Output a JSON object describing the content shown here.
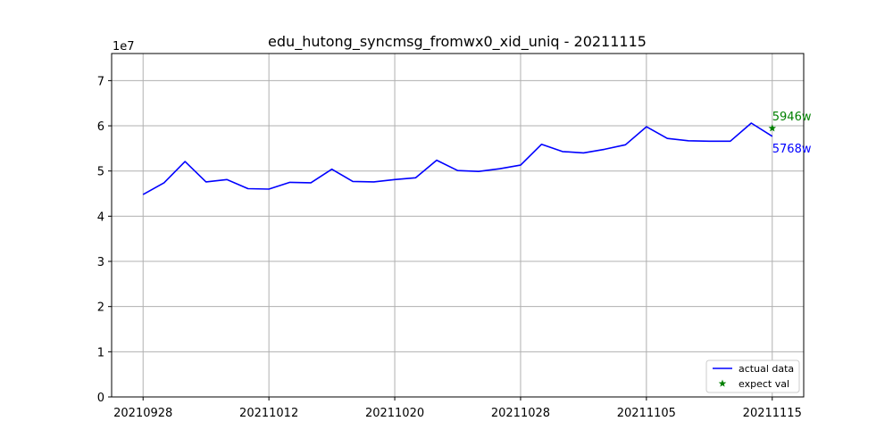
{
  "chart_data": {
    "type": "line",
    "title": "edu_hutong_syncmsg_fromwx0_xid_uniq - 20211115",
    "y_multiplier_label": "1e7",
    "xlabel": "",
    "ylabel": "",
    "ylim": [
      0,
      7.6
    ],
    "y_ticks": [
      0,
      1,
      2,
      3,
      4,
      5,
      6,
      7
    ],
    "y_tick_labels": [
      "0",
      "1",
      "2",
      "3",
      "4",
      "5",
      "6",
      "7"
    ],
    "x_tick_labels": [
      "20210928",
      "20211012",
      "20211020",
      "20211028",
      "20211105",
      "20211115"
    ],
    "x_tick_positions": [
      0,
      6,
      12,
      18,
      24,
      30
    ],
    "xlim": [
      -1.5,
      31.5
    ],
    "grid": true,
    "legend_position": "bottom-right",
    "series": [
      {
        "name": "actual data",
        "color": "#0000ff",
        "x": [
          0,
          1,
          2,
          3,
          4,
          5,
          6,
          7,
          8,
          9,
          10,
          11,
          12,
          13,
          14,
          15,
          16,
          17,
          18,
          19,
          20,
          21,
          22,
          23,
          24,
          25,
          26,
          27,
          28,
          29,
          30
        ],
        "values": [
          4.48,
          4.74,
          5.21,
          4.76,
          4.81,
          4.61,
          4.6,
          4.75,
          4.74,
          5.04,
          4.77,
          4.76,
          4.81,
          4.85,
          5.24,
          5.01,
          4.99,
          5.05,
          5.13,
          5.59,
          5.43,
          5.4,
          5.48,
          5.58,
          5.98,
          5.72,
          5.67,
          5.66,
          5.66,
          6.06,
          5.768
        ]
      },
      {
        "name": "expect val",
        "color": "#008000",
        "marker": "star",
        "x": [
          30
        ],
        "values": [
          5.946
        ]
      }
    ],
    "annotations": [
      {
        "text": "5946w",
        "color": "#008000"
      },
      {
        "text": "5768w",
        "color": "#0000ff"
      }
    ]
  }
}
